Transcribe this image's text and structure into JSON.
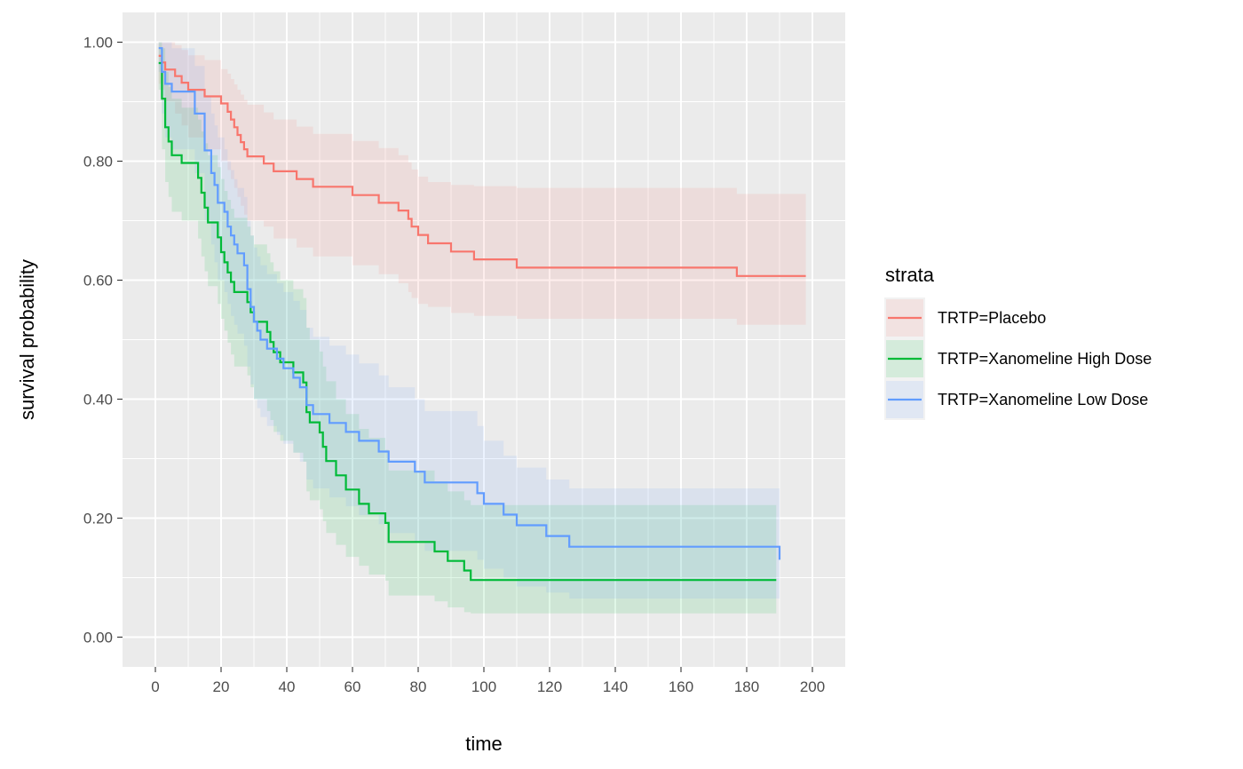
{
  "chart_data": {
    "type": "line",
    "step": true,
    "xlabel": "time",
    "ylabel": "survival probability",
    "xlim": [
      -10,
      210
    ],
    "ylim": [
      -0.05,
      1.05
    ],
    "x_ticks": [
      0,
      20,
      40,
      60,
      80,
      100,
      120,
      140,
      160,
      180,
      200
    ],
    "x_tick_labels": [
      "0",
      "20",
      "40",
      "60",
      "80",
      "100",
      "120",
      "140",
      "160",
      "180",
      "200"
    ],
    "y_ticks": [
      0.0,
      0.2,
      0.4,
      0.6,
      0.8,
      1.0
    ],
    "y_tick_labels": [
      "0.00",
      "0.20",
      "0.40",
      "0.60",
      "0.80",
      "1.00"
    ],
    "grid": true,
    "panel_background": "#EBEBEB",
    "legend": {
      "title": "strata",
      "placement": "right",
      "labels": [
        "TRTP=Placebo",
        "TRTP=Xanomeline High Dose",
        "TRTP=Xanomeline Low Dose"
      ]
    },
    "series": [
      {
        "name": "TRTP=Placebo",
        "color": "#F8766D",
        "time": [
          1,
          2,
          3,
          6,
          8,
          10,
          15,
          20,
          22,
          23,
          24,
          25,
          26,
          27,
          28,
          33,
          36,
          43,
          48,
          60,
          68,
          74,
          77,
          78,
          80,
          83,
          90,
          97,
          110,
          177,
          198
        ],
        "surv": [
          0.977,
          0.966,
          0.954,
          0.943,
          0.932,
          0.92,
          0.909,
          0.897,
          0.883,
          0.87,
          0.857,
          0.844,
          0.832,
          0.82,
          0.808,
          0.796,
          0.783,
          0.77,
          0.757,
          0.743,
          0.73,
          0.717,
          0.703,
          0.69,
          0.676,
          0.662,
          0.648,
          0.635,
          0.621,
          0.607,
          0.607
        ],
        "upper": [
          1.0,
          1.0,
          1.0,
          0.995,
          0.987,
          0.978,
          0.97,
          0.955,
          0.947,
          0.938,
          0.929,
          0.92,
          0.912,
          0.903,
          0.895,
          0.882,
          0.87,
          0.858,
          0.846,
          0.834,
          0.822,
          0.81,
          0.798,
          0.786,
          0.774,
          0.765,
          0.76,
          0.758,
          0.755,
          0.745,
          0.745
        ],
        "lower": [
          0.93,
          0.92,
          0.9,
          0.88,
          0.86,
          0.84,
          0.82,
          0.8,
          0.785,
          0.77,
          0.755,
          0.74,
          0.725,
          0.71,
          0.7,
          0.69,
          0.67,
          0.655,
          0.64,
          0.625,
          0.61,
          0.595,
          0.58,
          0.57,
          0.56,
          0.555,
          0.545,
          0.54,
          0.535,
          0.525,
          0.525
        ]
      },
      {
        "name": "TRTP=Xanomeline High Dose",
        "color": "#00BA38",
        "time": [
          1,
          2,
          3,
          4,
          5,
          8,
          13,
          14,
          15,
          16,
          19,
          20,
          21,
          22,
          23,
          24,
          28,
          29,
          30,
          34,
          35,
          36,
          38,
          42,
          45,
          46,
          47,
          50,
          51,
          52,
          55,
          58,
          62,
          65,
          70,
          71,
          85,
          89,
          94,
          96,
          189
        ],
        "surv": [
          0.965,
          0.905,
          0.857,
          0.833,
          0.81,
          0.797,
          0.772,
          0.747,
          0.722,
          0.697,
          0.672,
          0.647,
          0.63,
          0.613,
          0.597,
          0.58,
          0.563,
          0.546,
          0.53,
          0.513,
          0.496,
          0.479,
          0.462,
          0.445,
          0.428,
          0.378,
          0.361,
          0.344,
          0.32,
          0.296,
          0.272,
          0.248,
          0.224,
          0.208,
          0.192,
          0.16,
          0.144,
          0.128,
          0.112,
          0.096,
          0.096
        ],
        "upper": [
          1.0,
          0.99,
          0.95,
          0.925,
          0.905,
          0.89,
          0.87,
          0.85,
          0.83,
          0.81,
          0.79,
          0.77,
          0.75,
          0.735,
          0.72,
          0.705,
          0.69,
          0.675,
          0.66,
          0.645,
          0.63,
          0.615,
          0.6,
          0.585,
          0.57,
          0.52,
          0.5,
          0.48,
          0.455,
          0.43,
          0.4,
          0.375,
          0.35,
          0.335,
          0.315,
          0.28,
          0.262,
          0.245,
          0.23,
          0.222,
          0.222
        ],
        "lower": [
          0.92,
          0.82,
          0.765,
          0.74,
          0.715,
          0.7,
          0.67,
          0.64,
          0.615,
          0.59,
          0.56,
          0.535,
          0.515,
          0.495,
          0.475,
          0.455,
          0.44,
          0.42,
          0.4,
          0.38,
          0.365,
          0.345,
          0.33,
          0.31,
          0.295,
          0.245,
          0.23,
          0.215,
          0.195,
          0.175,
          0.155,
          0.135,
          0.12,
          0.105,
          0.095,
          0.07,
          0.06,
          0.05,
          0.042,
          0.04,
          0.04
        ]
      },
      {
        "name": "TRTP=Xanomeline Low Dose",
        "color": "#619CFF",
        "time": [
          1,
          2,
          3,
          5,
          12,
          15,
          17,
          18,
          19,
          21,
          22,
          23,
          24,
          25,
          27,
          28,
          29,
          30,
          31,
          32,
          34,
          37,
          39,
          42,
          44,
          46,
          48,
          53,
          58,
          62,
          68,
          71,
          79,
          82,
          98,
          100,
          106,
          110,
          119,
          126,
          190
        ],
        "surv": [
          0.99,
          0.95,
          0.93,
          0.917,
          0.88,
          0.818,
          0.78,
          0.76,
          0.73,
          0.715,
          0.69,
          0.675,
          0.66,
          0.645,
          0.625,
          0.585,
          0.555,
          0.53,
          0.515,
          0.5,
          0.485,
          0.468,
          0.452,
          0.436,
          0.42,
          0.39,
          0.375,
          0.36,
          0.345,
          0.33,
          0.312,
          0.295,
          0.278,
          0.26,
          0.242,
          0.224,
          0.206,
          0.188,
          0.17,
          0.152,
          0.13
        ],
        "upper": [
          1.0,
          1.0,
          1.0,
          0.99,
          0.96,
          0.91,
          0.88,
          0.86,
          0.84,
          0.82,
          0.8,
          0.785,
          0.77,
          0.755,
          0.74,
          0.7,
          0.675,
          0.655,
          0.64,
          0.625,
          0.61,
          0.595,
          0.58,
          0.565,
          0.55,
          0.52,
          0.505,
          0.49,
          0.475,
          0.46,
          0.44,
          0.42,
          0.4,
          0.38,
          0.355,
          0.33,
          0.305,
          0.285,
          0.265,
          0.25,
          0.25
        ],
        "lower": [
          0.95,
          0.88,
          0.84,
          0.82,
          0.78,
          0.7,
          0.66,
          0.63,
          0.6,
          0.58,
          0.56,
          0.54,
          0.525,
          0.51,
          0.49,
          0.455,
          0.425,
          0.4,
          0.385,
          0.37,
          0.355,
          0.34,
          0.325,
          0.31,
          0.295,
          0.265,
          0.25,
          0.235,
          0.22,
          0.205,
          0.19,
          0.175,
          0.16,
          0.145,
          0.13,
          0.115,
          0.1,
          0.085,
          0.075,
          0.065,
          0.065
        ]
      }
    ]
  }
}
